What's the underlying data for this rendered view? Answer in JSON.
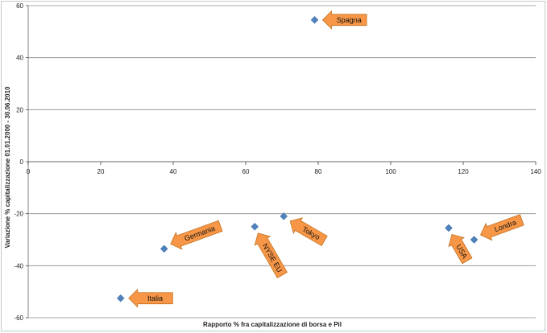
{
  "chart_data": {
    "type": "scatter",
    "xlabel": "Rapporto % fra capitalizzazione  di borsa e Pil",
    "ylabel": "Variazione % capitalizzazione  01.01.2000 - 30.06.2010",
    "xlim": [
      0,
      140
    ],
    "ylim": [
      -60,
      60
    ],
    "xticks": [
      0,
      20,
      40,
      60,
      80,
      100,
      120,
      140
    ],
    "yticks": [
      60,
      40,
      20,
      0,
      -20,
      -40,
      -60
    ],
    "grid": "horizontal",
    "marker": "diamond",
    "colors": {
      "marker": "#4f81bd",
      "callout_fill": "#f79646",
      "callout_stroke": "#c0711f",
      "grid": "#8c8c8c"
    },
    "points": [
      {
        "label": "Spagna",
        "x": 79,
        "y": 54.5,
        "arrow": "left"
      },
      {
        "label": "Germania",
        "x": 37.5,
        "y": -33.5,
        "arrow": "lower-left"
      },
      {
        "label": "NYSE EU",
        "x": 62.5,
        "y": -25,
        "arrow": "up"
      },
      {
        "label": "Tokyo",
        "x": 70.5,
        "y": -21,
        "arrow": "upper-left"
      },
      {
        "label": "USA",
        "x": 116,
        "y": -25.5,
        "arrow": "up"
      },
      {
        "label": "Londra",
        "x": 123,
        "y": -30,
        "arrow": "lower-left"
      },
      {
        "label": "Italia",
        "x": 25.5,
        "y": -52.5,
        "arrow": "left"
      }
    ]
  }
}
